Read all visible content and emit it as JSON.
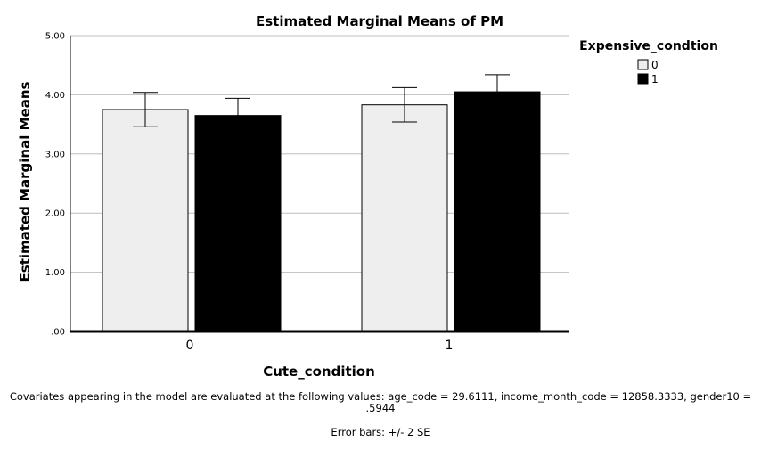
{
  "chart_data": {
    "type": "bar",
    "title": "Estimated Marginal Means of PM",
    "xlabel": "Cute_condition",
    "ylabel": "Estimated Marginal Means",
    "categories": [
      "0",
      "1"
    ],
    "legend_title": "Expensive_condtion",
    "legend_position": "top-right",
    "series": [
      {
        "name": "0",
        "color": "#eeeeee",
        "values": [
          3.75,
          3.83
        ],
        "error_low": [
          3.46,
          3.54
        ],
        "error_high": [
          4.04,
          4.12
        ]
      },
      {
        "name": "1",
        "color": "#000000",
        "values": [
          3.65,
          4.05
        ],
        "error_low": [
          3.36,
          3.76
        ],
        "error_high": [
          3.94,
          4.34
        ]
      }
    ],
    "ylim": [
      0,
      5
    ],
    "yticks": [
      0,
      1,
      2,
      3,
      4,
      5
    ],
    "ytick_labels": [
      ".00",
      "1.00",
      "2.00",
      "3.00",
      "4.00",
      "5.00"
    ],
    "grid": true
  },
  "footnotes": {
    "covariates": "Covariates appearing in the model are evaluated at the following values: age_code = 29.6111, income_month_code = 12858.3333, gender10 = .5944",
    "error_bars": "Error bars: +/- 2 SE"
  }
}
